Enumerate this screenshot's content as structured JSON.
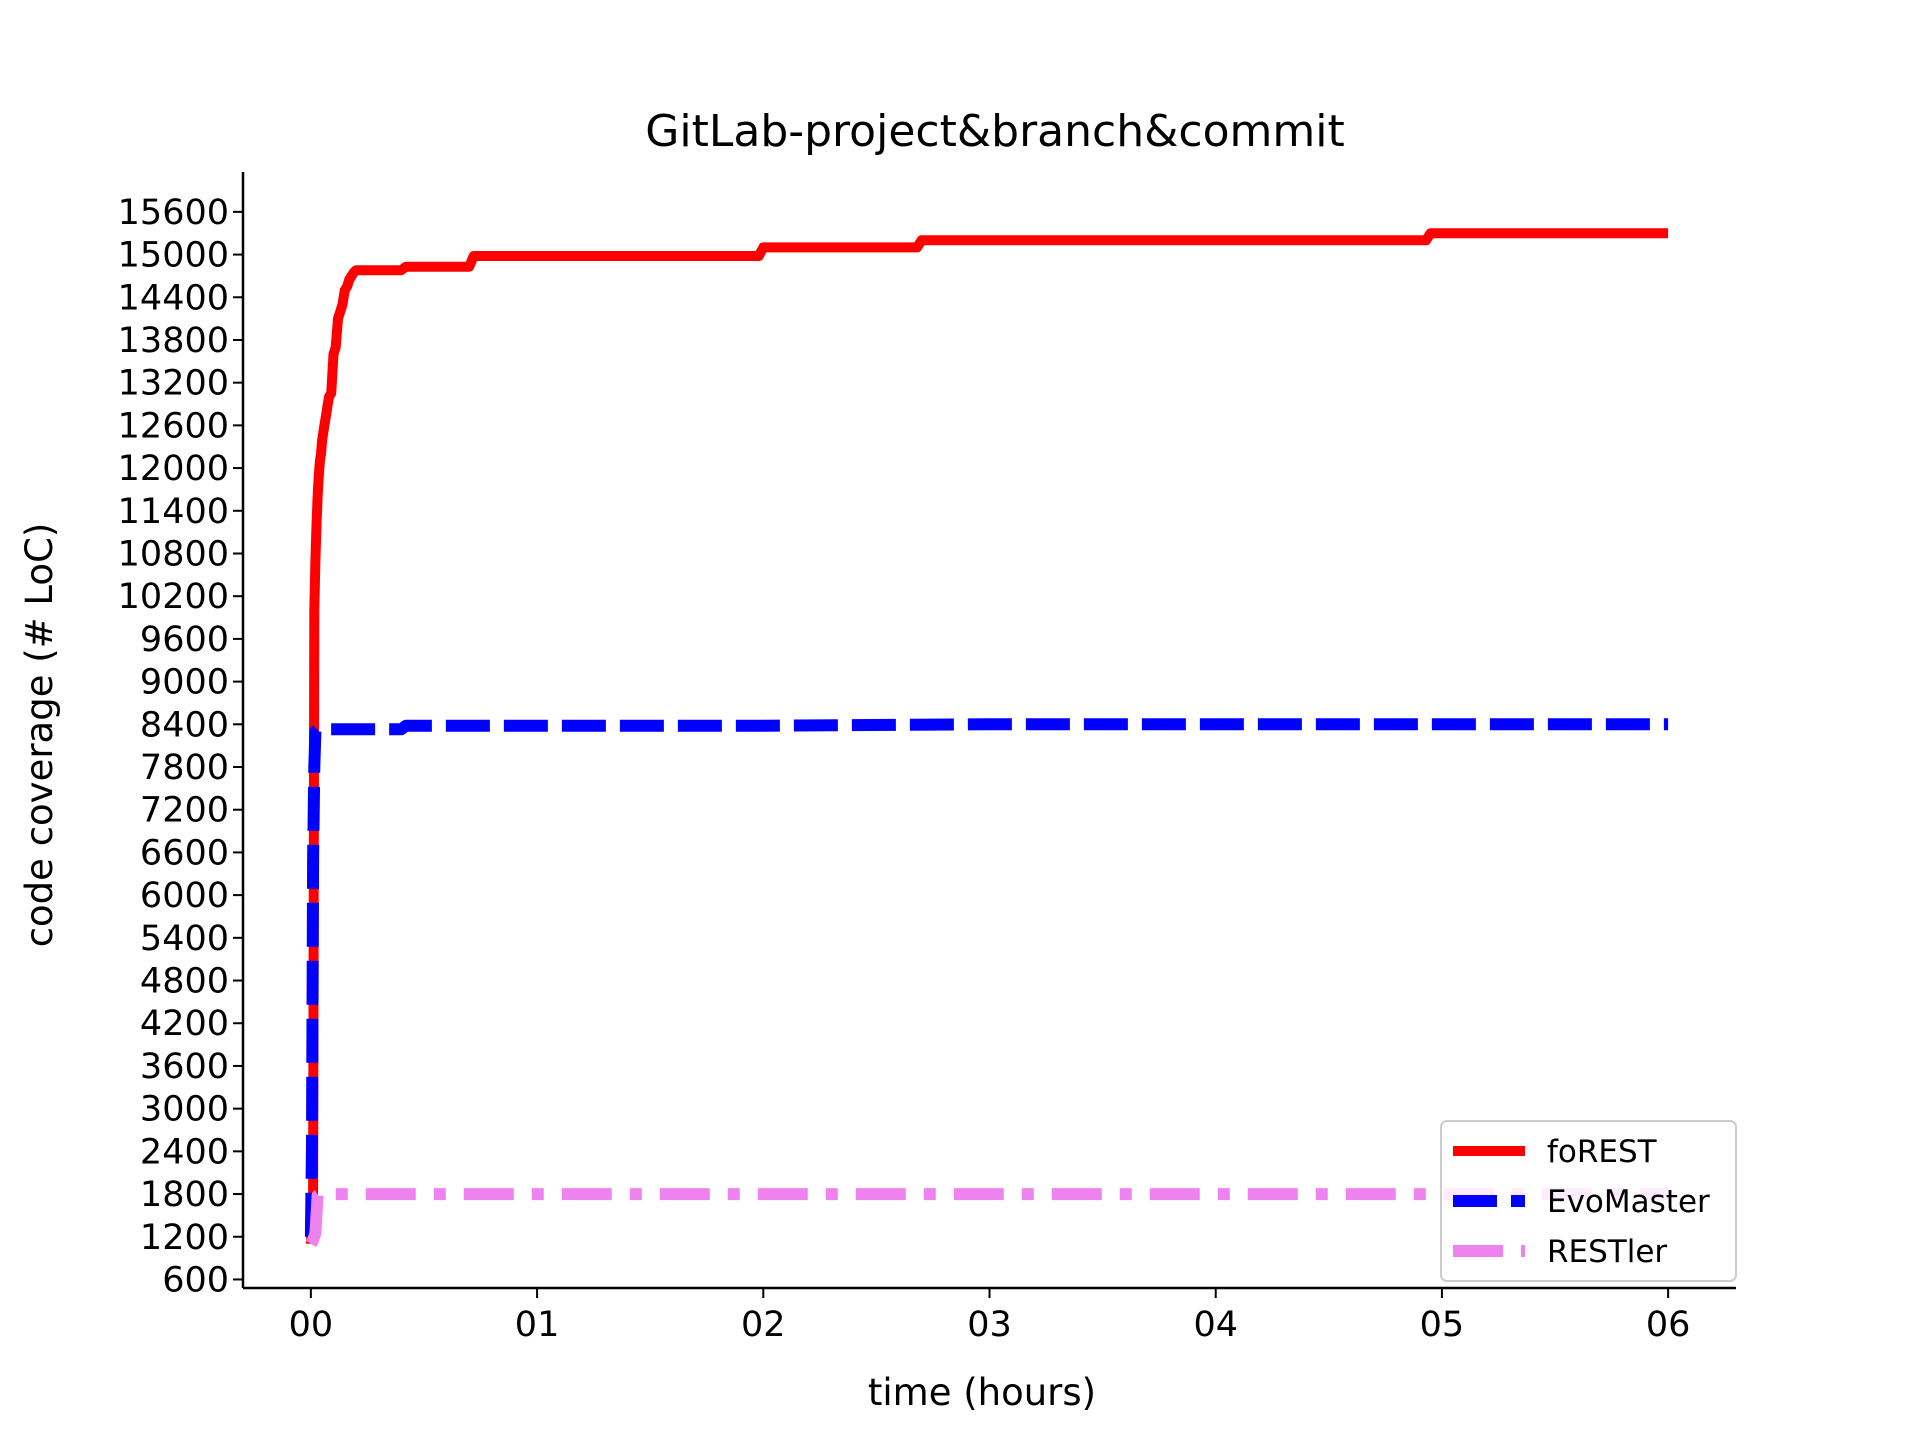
{
  "chart_data": {
    "type": "line",
    "title": "GitLab-project&branch&commit",
    "xlabel": "time (hours)",
    "ylabel": "code coverage (# LoC)",
    "xlim": [
      -0.3,
      6.3
    ],
    "ylim": [
      480,
      16160
    ],
    "x_ticks": [
      0,
      1,
      2,
      3,
      4,
      5,
      6
    ],
    "x_tick_labels": [
      "00",
      "01",
      "02",
      "03",
      "04",
      "05",
      "06"
    ],
    "y_ticks": [
      600,
      1200,
      1800,
      2400,
      3000,
      3600,
      4200,
      4800,
      5400,
      6000,
      6600,
      7200,
      7800,
      8400,
      9000,
      9600,
      10200,
      10800,
      11400,
      12000,
      12600,
      13200,
      13800,
      14400,
      15000,
      15600
    ],
    "y_tick_labels": [
      "600",
      "1200",
      "1800",
      "2400",
      "3000",
      "3600",
      "4200",
      "4800",
      "5400",
      "6000",
      "6600",
      "7200",
      "7800",
      "8400",
      "9000",
      "9600",
      "10200",
      "10800",
      "11400",
      "12000",
      "12600",
      "13200",
      "13800",
      "14400",
      "15000",
      "15600"
    ],
    "grid": false,
    "legend_position": "bottom-right",
    "series": [
      {
        "name": "foREST",
        "color": "#ff0000",
        "style": "solid",
        "x": [
          0.0,
          0.01,
          0.015,
          0.02,
          0.025,
          0.03,
          0.035,
          0.04,
          0.045,
          0.05,
          0.055,
          0.06,
          0.065,
          0.07,
          0.075,
          0.08,
          0.09,
          0.1,
          0.11,
          0.12,
          0.13,
          0.14,
          0.15,
          0.16,
          0.17,
          0.18,
          0.19,
          0.2,
          0.25,
          0.4,
          0.42,
          0.7,
          0.72,
          1.5,
          1.98,
          2.0,
          2.68,
          2.7,
          4.93,
          4.95,
          6.0
        ],
        "y": [
          1100,
          1800,
          10000,
          10700,
          11200,
          11600,
          11900,
          12100,
          12200,
          12400,
          12500,
          12600,
          12700,
          12800,
          12900,
          13000,
          13050,
          13600,
          13700,
          14100,
          14200,
          14300,
          14500,
          14550,
          14650,
          14700,
          14750,
          14780,
          14780,
          14780,
          14830,
          14830,
          14980,
          14980,
          14980,
          15100,
          15100,
          15200,
          15200,
          15300,
          15300
        ]
      },
      {
        "name": "EvoMaster",
        "color": "#0000ff",
        "style": "dashed",
        "x": [
          0.0,
          0.005,
          0.01,
          0.015,
          0.02,
          0.03,
          0.05,
          0.2,
          0.4,
          0.42,
          2.0,
          3.0,
          6.0
        ],
        "y": [
          1200,
          2500,
          6500,
          7800,
          8300,
          8330,
          8330,
          8330,
          8330,
          8380,
          8380,
          8400,
          8400
        ]
      },
      {
        "name": "RESTler",
        "color": "#ee82ee",
        "style": "dashdot",
        "x": [
          0.0,
          0.01,
          0.02,
          0.03,
          0.04,
          1.0,
          5.0,
          6.0
        ],
        "y": [
          1100,
          1150,
          1250,
          1780,
          1800,
          1800,
          1800,
          1800
        ]
      }
    ]
  }
}
